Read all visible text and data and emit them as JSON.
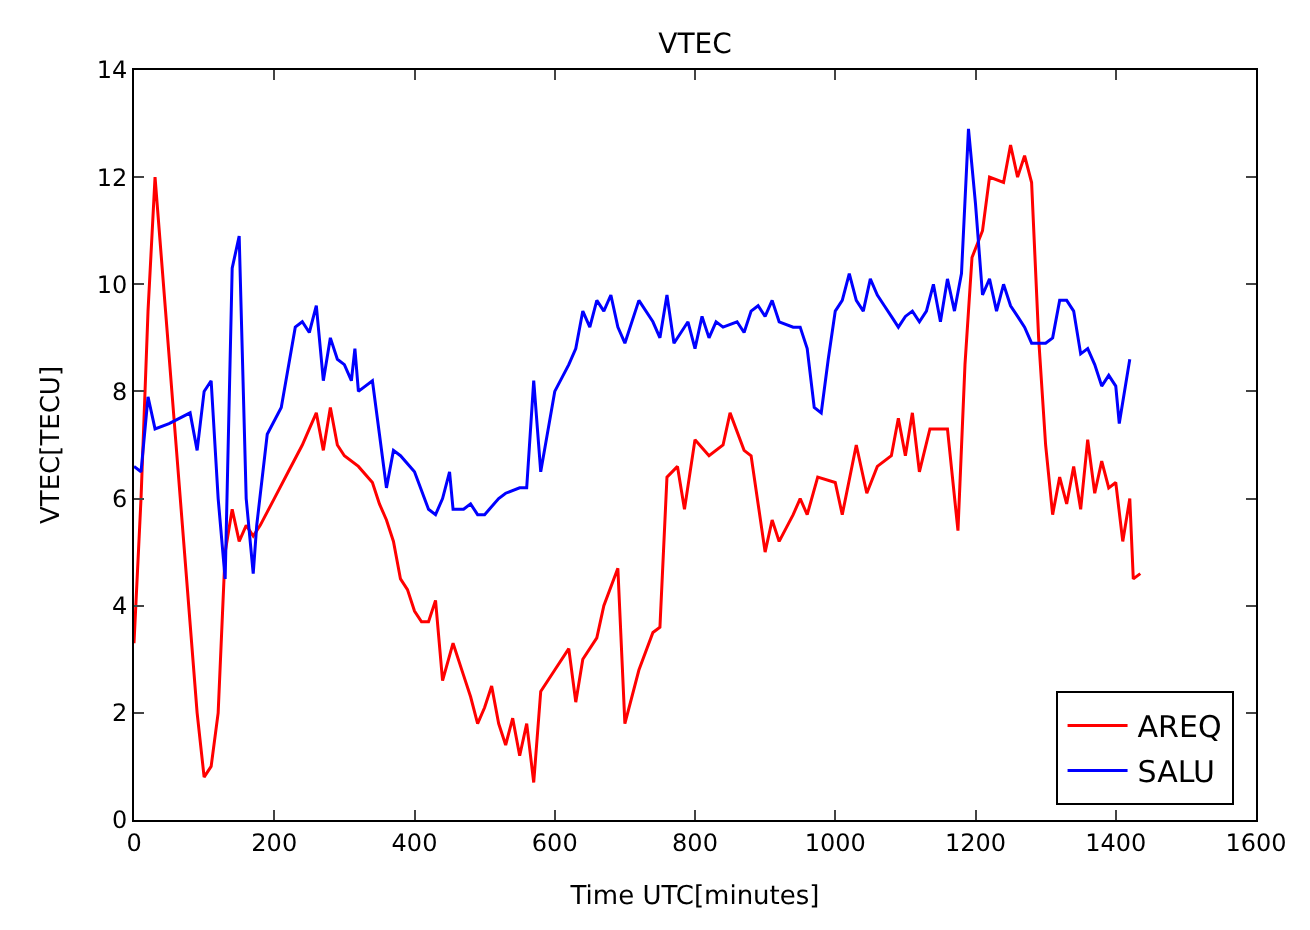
{
  "chart_data": {
    "type": "line",
    "title": "VTEC",
    "xlabel": "Time UTC[minutes]",
    "ylabel": "VTEC[TECU]",
    "xlim": [
      0,
      1600
    ],
    "xticks": [
      0,
      200,
      400,
      600,
      800,
      1000,
      1200,
      1400,
      1600
    ],
    "ylim": [
      0,
      14
    ],
    "yticks": [
      0,
      2,
      4,
      6,
      8,
      10,
      12,
      14
    ],
    "legend": "bottom right",
    "line_style": "solid",
    "series": [
      {
        "name": "AREQ",
        "color": "#ff0000",
        "x": [
          0,
          10,
          20,
          30,
          45,
          60,
          75,
          90,
          100,
          110,
          120,
          130,
          140,
          150,
          160,
          170,
          180,
          200,
          220,
          240,
          250,
          260,
          270,
          280,
          290,
          300,
          320,
          340,
          350,
          360,
          370,
          380,
          390,
          400,
          410,
          420,
          430,
          440,
          455,
          470,
          480,
          490,
          500,
          510,
          520,
          530,
          540,
          550,
          560,
          570,
          580,
          600,
          620,
          630,
          640,
          660,
          670,
          690,
          700,
          720,
          740,
          750,
          760,
          775,
          785,
          800,
          820,
          840,
          850,
          870,
          880,
          890,
          900,
          910,
          920,
          940,
          950,
          960,
          975,
          1000,
          1010,
          1030,
          1045,
          1060,
          1080,
          1090,
          1100,
          1110,
          1120,
          1135,
          1160,
          1175,
          1185,
          1195,
          1210,
          1220,
          1240,
          1250,
          1260,
          1270,
          1280,
          1290,
          1300,
          1310,
          1320,
          1330,
          1340,
          1350,
          1360,
          1370,
          1380,
          1390,
          1400,
          1410,
          1420,
          1425,
          1435
        ],
        "values": [
          3.3,
          6,
          9.5,
          12,
          9.5,
          7,
          4.5,
          2,
          0.8,
          1,
          2,
          5,
          5.8,
          5.2,
          5.5,
          5.3,
          5.5,
          6,
          6.5,
          7,
          7.3,
          7.6,
          6.9,
          7.7,
          7,
          6.8,
          6.6,
          6.3,
          5.9,
          5.6,
          5.2,
          4.5,
          4.3,
          3.9,
          3.7,
          3.7,
          4.1,
          2.6,
          3.3,
          2.7,
          2.3,
          1.8,
          2.1,
          2.5,
          1.8,
          1.4,
          1.9,
          1.2,
          1.8,
          0.7,
          2.4,
          2.8,
          3.2,
          2.2,
          3.0,
          3.4,
          4.0,
          4.7,
          1.8,
          2.8,
          3.5,
          3.6,
          6.4,
          6.6,
          5.8,
          7.1,
          6.8,
          7.0,
          7.6,
          6.9,
          6.8,
          5.9,
          5.0,
          5.6,
          5.2,
          5.7,
          6.0,
          5.7,
          6.4,
          6.3,
          5.7,
          7.0,
          6.1,
          6.6,
          6.8,
          7.5,
          6.8,
          7.6,
          6.5,
          7.3,
          7.3,
          5.4,
          8.5,
          10.5,
          11.0,
          12.0,
          11.9,
          12.6,
          12.0,
          12.4,
          11.9,
          9,
          7,
          5.7,
          6.4,
          5.9,
          6.6,
          5.8,
          7.1,
          6.1,
          6.7,
          6.2,
          6.3,
          5.2,
          6,
          4.5,
          4.6
        ]
      },
      {
        "name": "SALU",
        "color": "#0000ff",
        "x": [
          0,
          10,
          20,
          30,
          50,
          80,
          90,
          100,
          110,
          120,
          130,
          140,
          150,
          160,
          170,
          175,
          190,
          210,
          230,
          240,
          250,
          260,
          270,
          280,
          290,
          300,
          310,
          315,
          320,
          340,
          350,
          360,
          370,
          380,
          400,
          420,
          430,
          440,
          450,
          455,
          470,
          480,
          490,
          500,
          520,
          530,
          550,
          560,
          570,
          580,
          600,
          620,
          630,
          640,
          650,
          660,
          670,
          680,
          690,
          700,
          720,
          740,
          750,
          760,
          770,
          780,
          790,
          800,
          810,
          820,
          830,
          840,
          860,
          870,
          880,
          890,
          900,
          910,
          920,
          940,
          950,
          960,
          970,
          980,
          990,
          1000,
          1010,
          1020,
          1030,
          1040,
          1050,
          1060,
          1070,
          1080,
          1090,
          1100,
          1110,
          1120,
          1130,
          1140,
          1150,
          1160,
          1170,
          1180,
          1190,
          1200,
          1210,
          1220,
          1230,
          1240,
          1250,
          1260,
          1270,
          1280,
          1300,
          1310,
          1320,
          1330,
          1340,
          1350,
          1360,
          1370,
          1380,
          1390,
          1400,
          1405,
          1420
        ],
        "values": [
          6.6,
          6.5,
          7.9,
          7.3,
          7.4,
          7.6,
          6.9,
          8.0,
          8.2,
          6,
          4.5,
          10.3,
          10.9,
          6,
          4.6,
          5.5,
          7.2,
          7.7,
          9.2,
          9.3,
          9.1,
          9.6,
          8.2,
          9,
          8.6,
          8.5,
          8.2,
          8.8,
          8.0,
          8.2,
          7.2,
          6.2,
          6.9,
          6.8,
          6.5,
          5.8,
          5.7,
          6.0,
          6.5,
          5.8,
          5.8,
          5.9,
          5.7,
          5.7,
          6.0,
          6.1,
          6.2,
          6.2,
          8.2,
          6.5,
          8.0,
          8.5,
          8.8,
          9.5,
          9.2,
          9.7,
          9.5,
          9.8,
          9.2,
          8.9,
          9.7,
          9.3,
          9.0,
          9.8,
          8.9,
          9.1,
          9.3,
          8.8,
          9.4,
          9.0,
          9.3,
          9.2,
          9.3,
          9.1,
          9.5,
          9.6,
          9.4,
          9.7,
          9.3,
          9.2,
          9.2,
          8.8,
          7.7,
          7.6,
          8.6,
          9.5,
          9.7,
          10.2,
          9.7,
          9.5,
          10.1,
          9.8,
          9.6,
          9.4,
          9.2,
          9.4,
          9.5,
          9.3,
          9.5,
          10.0,
          9.3,
          10.1,
          9.5,
          10.2,
          12.9,
          11.5,
          9.8,
          10.1,
          9.5,
          10.0,
          9.6,
          9.4,
          9.2,
          8.9,
          8.9,
          9.0,
          9.7,
          9.7,
          9.5,
          8.7,
          8.8,
          8.5,
          8.1,
          8.3,
          8.1,
          7.4,
          8.6
        ]
      }
    ]
  }
}
